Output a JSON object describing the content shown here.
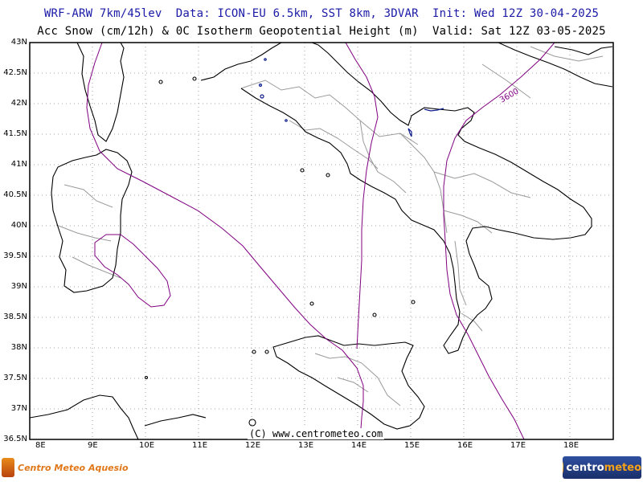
{
  "header": {
    "line1": "WRF-ARW 7km/45lev  Data: ICON-EU 6.5km, SST 8km, 3DVAR  Init: Wed 12Z 30-04-2025",
    "line2": "Acc Snow (cm/12h) & 0C Isotherm Geopotential Height (m)  Valid: Sat 12Z 03-05-2025"
  },
  "map": {
    "lat_labels": [
      "43N",
      "42.5N",
      "42N",
      "41.5N",
      "41N",
      "40.5N",
      "40N",
      "39.5N",
      "39N",
      "38.5N",
      "38N",
      "37.5N",
      "37N",
      "36.5N"
    ],
    "lon_labels": [
      "8E",
      "9E",
      "10E",
      "11E",
      "12E",
      "13E",
      "14E",
      "15E",
      "16E",
      "17E",
      "18E"
    ],
    "contour_label": "3600",
    "copyright": "(C) www.centrometeo.com",
    "colors": {
      "frame": "#000000",
      "coast": "#000000",
      "borders": "#999999",
      "contour": "#800080",
      "snow": "#0a1a8a",
      "grid": "#8a8a8a"
    }
  },
  "footer": {
    "left_logo_text": "Centro Meteo Aquesio",
    "right_logo_text_a": "centro",
    "right_logo_text_b": "meteo"
  }
}
